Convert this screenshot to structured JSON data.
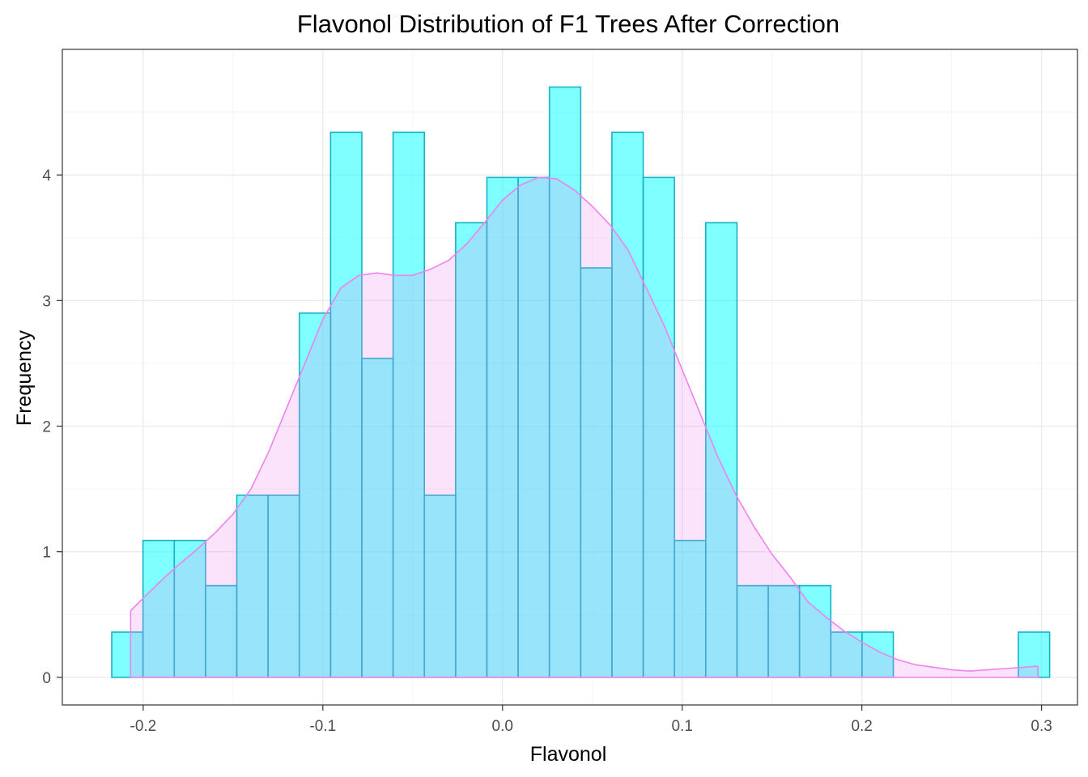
{
  "chart_data": {
    "type": "histogram",
    "title": "Flavonol Distribution of F1 Trees After Correction",
    "xlabel": "Flavonol",
    "ylabel": "Frequency",
    "xlim": [
      -0.245,
      0.32
    ],
    "ylim": [
      -0.22,
      5.0
    ],
    "x_ticks": [
      {
        "value": -0.2,
        "label": "-0.2"
      },
      {
        "value": -0.1,
        "label": "-0.1"
      },
      {
        "value": 0.0,
        "label": "0.0"
      },
      {
        "value": 0.1,
        "label": "0.1"
      },
      {
        "value": 0.2,
        "label": "0.2"
      },
      {
        "value": 0.3,
        "label": "0.3"
      }
    ],
    "y_ticks": [
      {
        "value": 0,
        "label": "0"
      },
      {
        "value": 1,
        "label": "1"
      },
      {
        "value": 2,
        "label": "2"
      },
      {
        "value": 3,
        "label": "3"
      },
      {
        "value": 4,
        "label": "4"
      }
    ],
    "grid": true,
    "bin_start": -0.2175,
    "bin_width": 0.0174,
    "bars": [
      0.36,
      1.09,
      1.09,
      0.73,
      1.45,
      1.45,
      2.9,
      4.34,
      2.54,
      4.34,
      1.45,
      3.62,
      3.98,
      3.98,
      4.7,
      3.26,
      4.34,
      3.98,
      1.09,
      3.62,
      0.73,
      0.73,
      0.73,
      0.36,
      0.36,
      0,
      0,
      0,
      0,
      0.36
    ],
    "density": {
      "x": [
        -0.207,
        -0.2,
        -0.19,
        -0.18,
        -0.17,
        -0.16,
        -0.15,
        -0.14,
        -0.13,
        -0.12,
        -0.11,
        -0.1,
        -0.09,
        -0.08,
        -0.07,
        -0.06,
        -0.05,
        -0.04,
        -0.03,
        -0.02,
        -0.01,
        0.0,
        0.01,
        0.02,
        0.03,
        0.04,
        0.05,
        0.06,
        0.07,
        0.08,
        0.09,
        0.1,
        0.11,
        0.12,
        0.13,
        0.14,
        0.15,
        0.16,
        0.17,
        0.18,
        0.19,
        0.2,
        0.21,
        0.22,
        0.23,
        0.24,
        0.25,
        0.26,
        0.27,
        0.28,
        0.29,
        0.298
      ],
      "y": [
        0.53,
        0.63,
        0.77,
        0.9,
        1.02,
        1.15,
        1.3,
        1.5,
        1.8,
        2.15,
        2.5,
        2.85,
        3.1,
        3.2,
        3.22,
        3.2,
        3.2,
        3.25,
        3.32,
        3.45,
        3.62,
        3.8,
        3.92,
        3.98,
        3.97,
        3.88,
        3.75,
        3.6,
        3.4,
        3.1,
        2.8,
        2.45,
        2.1,
        1.75,
        1.45,
        1.2,
        0.98,
        0.8,
        0.6,
        0.48,
        0.37,
        0.28,
        0.2,
        0.14,
        0.1,
        0.08,
        0.06,
        0.05,
        0.06,
        0.07,
        0.08,
        0.09
      ]
    },
    "colors": {
      "bar_fill": "#00ffff",
      "bar_stroke": "#1ab1c7",
      "density_fill": "#ee82ee",
      "density_stroke": "#ee82ee",
      "overlap": "#91dbf2",
      "grid_major": "#ebebeb",
      "grid_minor": "#f5f5f5",
      "panel_border": "#333333",
      "tick_text": "#4d4d4d"
    }
  }
}
